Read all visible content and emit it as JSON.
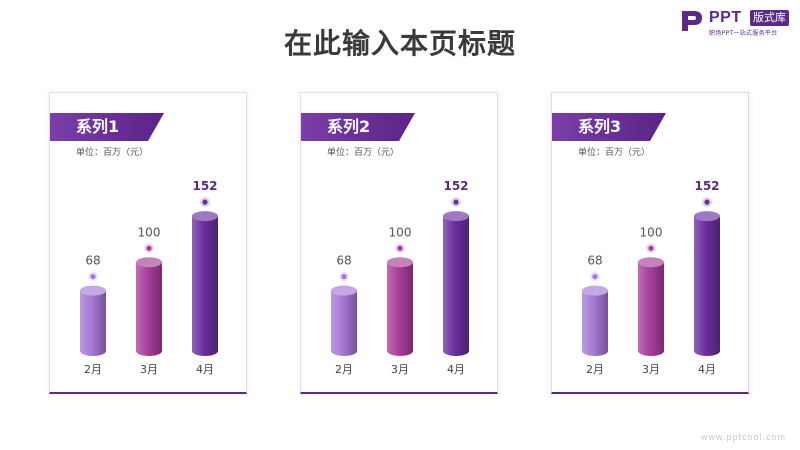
{
  "page": {
    "title": "在此输入本页标题"
  },
  "logo": {
    "brand": "PPT",
    "badge": "版式库",
    "tagline": "职场PPT一站式服务平台"
  },
  "footer": {
    "url": "www.pptcool.com"
  },
  "colors": {
    "brand": "#5b2a86",
    "bar1": "#a778d6",
    "bar2": "#a83e9c",
    "bar3": "#6a2f9e"
  },
  "chart_data": [
    {
      "type": "bar",
      "title": "系列1",
      "unit": "单位：百万（元）",
      "categories": [
        "2月",
        "3月",
        "4月"
      ],
      "values": [
        68,
        100,
        152
      ],
      "ylim": [
        0,
        160
      ],
      "grid": false
    },
    {
      "type": "bar",
      "title": "系列2",
      "unit": "单位：百万（元）",
      "categories": [
        "2月",
        "3月",
        "4月"
      ],
      "values": [
        68,
        100,
        152
      ],
      "ylim": [
        0,
        160
      ],
      "grid": false
    },
    {
      "type": "bar",
      "title": "系列3",
      "unit": "单位：百万（元）",
      "categories": [
        "2月",
        "3月",
        "4月"
      ],
      "values": [
        68,
        100,
        152
      ],
      "ylim": [
        0,
        160
      ],
      "grid": false
    }
  ]
}
